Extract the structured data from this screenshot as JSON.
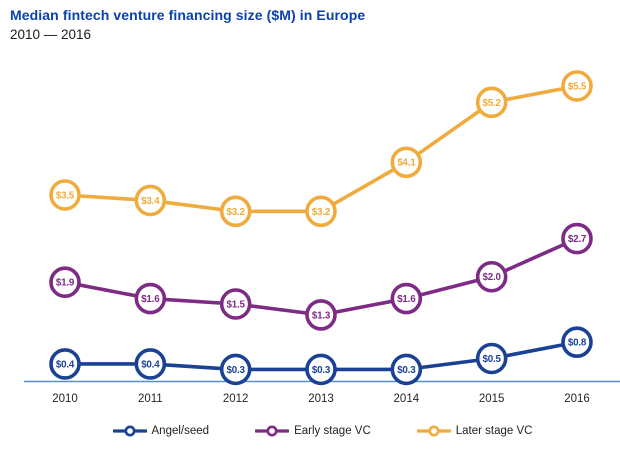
{
  "header": {
    "title": "Median fintech venture financing size ($M) in Europe",
    "subtitle": "2010 — 2016"
  },
  "colors": {
    "title_text": "#0A41AE",
    "axis_line": "#5590CE",
    "tick_text": "#262626",
    "legend_text": "#222222",
    "background": "#FFFFFF"
  },
  "chart_data": {
    "type": "line",
    "title": "Median fintech venture financing size ($M) in Europe",
    "subtitle": "2010 — 2016",
    "categories": [
      "2010",
      "2011",
      "2012",
      "2013",
      "2014",
      "2015",
      "2016"
    ],
    "series": [
      {
        "name": "Angel/seed",
        "color": "#1B4195",
        "values": [
          0.4,
          0.4,
          0.3,
          0.3,
          0.3,
          0.5,
          0.8
        ],
        "point_labels": [
          "$0.4",
          "$0.4",
          "$0.3",
          "$0.3",
          "$0.3",
          "$0.5",
          "$0.8"
        ]
      },
      {
        "name": "Early stage VC",
        "color": "#7D2B85",
        "values": [
          1.9,
          1.6,
          1.5,
          1.3,
          1.6,
          2.0,
          2.7
        ],
        "point_labels": [
          "$1.9",
          "$1.6",
          "$1.5",
          "$1.3",
          "$1.6",
          "$2.0",
          "$2.7"
        ]
      },
      {
        "name": "Later stage VC",
        "color": "#EFAC3D",
        "values": [
          3.5,
          3.4,
          3.2,
          3.2,
          4.1,
          5.2,
          5.5
        ],
        "point_labels": [
          "$3.5",
          "$3.4",
          "$3.2",
          "$3.2",
          "$4.1",
          "$5.2",
          "$5.5"
        ]
      }
    ],
    "marker": "circle-with-value",
    "grid": false,
    "legend_position": "bottom",
    "xlabel": "",
    "ylabel": "",
    "ylim": [
      0,
      6
    ]
  }
}
